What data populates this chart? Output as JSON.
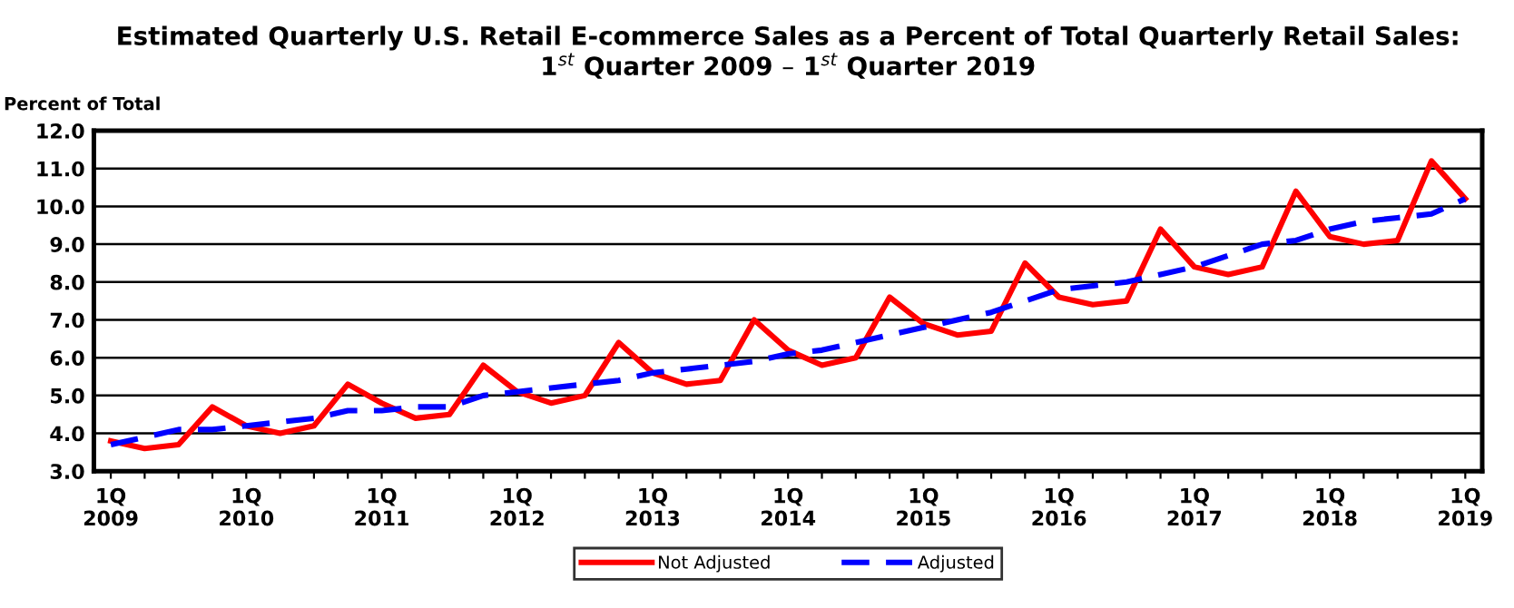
{
  "chart_data": {
    "type": "line",
    "title": "Estimated Quarterly U.S. Retail E-commerce Sales as a Percent of Total Quarterly Retail Sales:\n1$^{st}$ Quarter 2009 – 1$^{st}$ Quarter 2019",
    "ylabel": "Percent of Total",
    "categories": [
      "1Q\n2009",
      null,
      null,
      null,
      "1Q\n2010",
      null,
      null,
      null,
      "1Q\n2011",
      null,
      null,
      null,
      "1Q\n2012",
      null,
      null,
      null,
      "1Q\n2013",
      null,
      null,
      null,
      "1Q\n2014",
      null,
      null,
      null,
      "1Q\n2015",
      null,
      null,
      null,
      "1Q\n2016",
      null,
      null,
      null,
      "1Q\n2017",
      null,
      null,
      null,
      "1Q\n2018",
      null,
      null,
      null,
      "1Q\n2019"
    ],
    "series": [
      {
        "name": "Not Adjusted",
        "color": "#ff0000",
        "line_style": "solid",
        "values": [
          3.8,
          3.6,
          3.7,
          4.7,
          4.2,
          4.0,
          4.2,
          5.3,
          4.8,
          4.4,
          4.5,
          5.8,
          5.1,
          4.8,
          5.0,
          6.4,
          5.6,
          5.3,
          5.4,
          7.0,
          6.2,
          5.8,
          6.0,
          7.6,
          6.9,
          6.6,
          6.7,
          8.5,
          7.6,
          7.4,
          7.5,
          9.4,
          8.4,
          8.2,
          8.4,
          10.4,
          9.2,
          9.0,
          9.1,
          11.2,
          10.2
        ]
      },
      {
        "name": "Adjusted",
        "color": "#0000ff",
        "line_style": "dashed",
        "values": [
          3.7,
          3.9,
          4.1,
          4.1,
          4.2,
          4.3,
          4.4,
          4.6,
          4.6,
          4.7,
          4.7,
          5.0,
          5.1,
          5.2,
          5.3,
          5.4,
          5.6,
          5.7,
          5.8,
          5.9,
          6.1,
          6.2,
          6.4,
          6.6,
          6.8,
          7.0,
          7.2,
          7.5,
          7.8,
          7.9,
          8.0,
          8.2,
          8.4,
          8.7,
          9.0,
          9.1,
          9.4,
          9.6,
          9.7,
          9.8,
          10.2
        ]
      }
    ],
    "ylim": [
      3.0,
      12.0
    ],
    "yticks": [
      {
        "value": 3,
        "label": "3.0"
      },
      {
        "value": 4,
        "label": "4.0"
      },
      {
        "value": 5,
        "label": "5.0"
      },
      {
        "value": 6,
        "label": "6.0"
      },
      {
        "value": 7,
        "label": "7.0"
      },
      {
        "value": 8,
        "label": "8.0"
      },
      {
        "value": 9,
        "label": "9.0"
      },
      {
        "value": 10,
        "label": "10.0"
      },
      {
        "value": 11,
        "label": "11.0"
      },
      {
        "value": 12,
        "label": "12.0"
      }
    ],
    "grid": "y",
    "legend": "bottom",
    "marker": "none"
  }
}
